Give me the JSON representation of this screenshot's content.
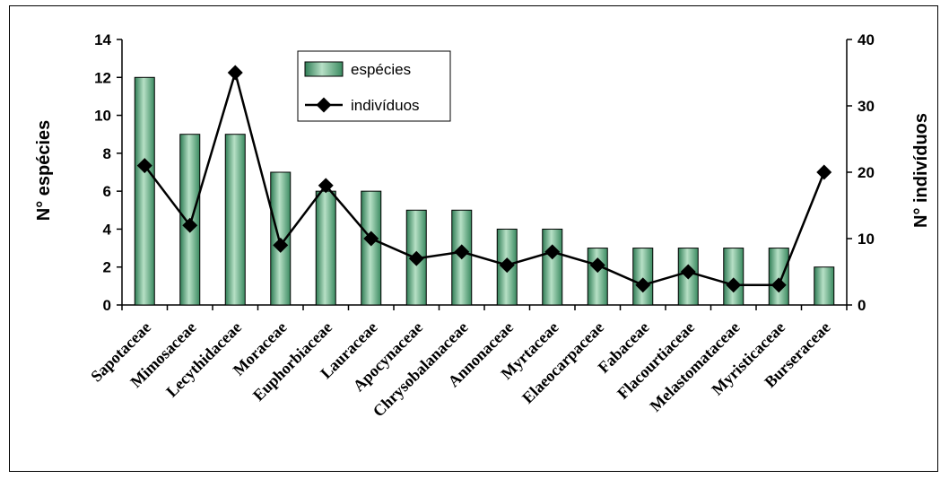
{
  "chart_data": {
    "type": "bar",
    "categories": [
      "Sapotaceae",
      "Mimosaceae",
      "Lecythidaceae",
      "Moraceae",
      "Euphorbiaceae",
      "Lauraceae",
      "Apocynaceae",
      "Chrysobalanaceae",
      "Annonaceae",
      "Myrtaceae",
      "Elaeocarpaceae",
      "Fabaceae",
      "Flacourtiaceae",
      "Melastomataceae",
      "Myristicaceae",
      "Burseraceae"
    ],
    "series": [
      {
        "name": "espécies",
        "type": "bar",
        "axis": "left",
        "values": [
          12,
          9,
          9,
          7,
          6,
          6,
          5,
          5,
          4,
          4,
          3,
          3,
          3,
          3,
          3,
          2
        ]
      },
      {
        "name": "indivíduos",
        "type": "line",
        "axis": "right",
        "values": [
          21,
          12,
          35,
          9,
          18,
          10,
          7,
          8,
          6,
          8,
          6,
          3,
          5,
          3,
          3,
          20
        ]
      }
    ],
    "ylabel": "N° espécies",
    "y2label": "N° indivíduos",
    "ylim": [
      0,
      14
    ],
    "y2lim": [
      0,
      40
    ],
    "yticks": [
      "0",
      "2",
      "4",
      "6",
      "8",
      "10",
      "12",
      "14"
    ],
    "y2ticks": [
      "0",
      "10",
      "20",
      "30",
      "40"
    ],
    "legend_position": "top-center",
    "colors": {
      "bar_fill": "#4aa074",
      "bar_light": "#b7e0c6",
      "bar_stroke": "#000000",
      "line": "#000000"
    }
  }
}
